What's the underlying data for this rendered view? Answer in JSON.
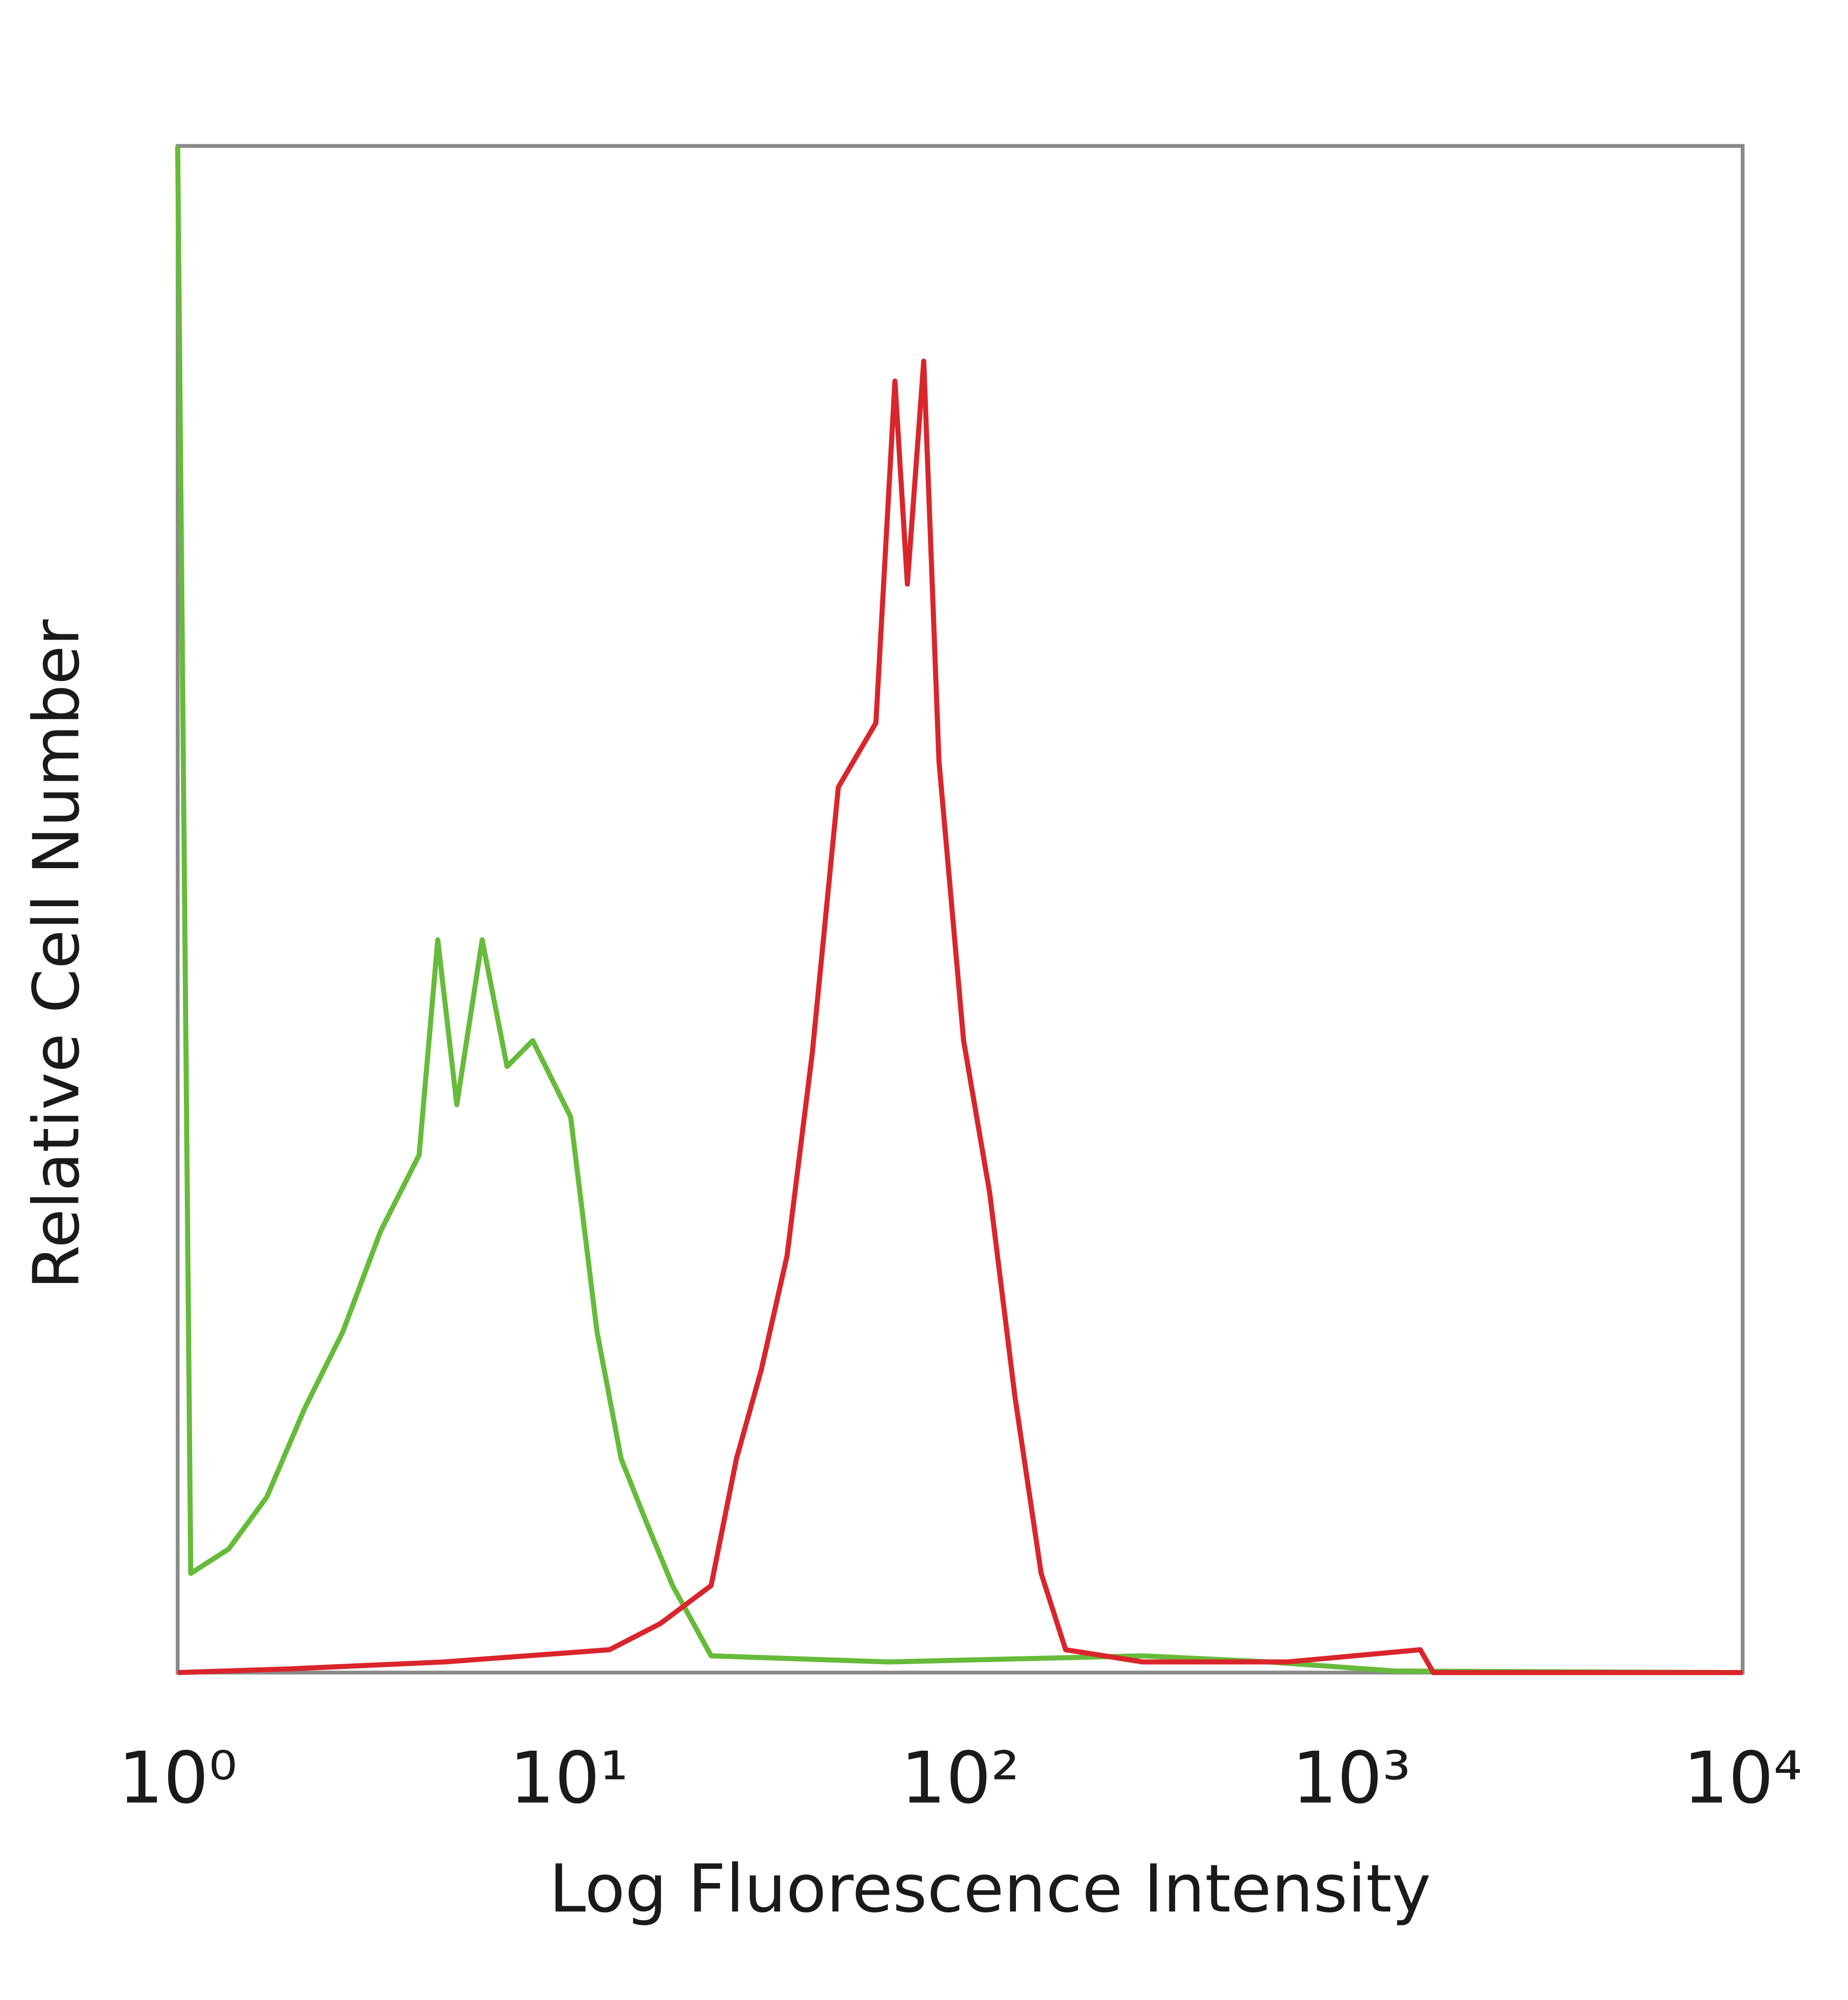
{
  "chart_data": {
    "type": "line",
    "xlabel": "Log Fluorescence Intensity",
    "ylabel": "Relative Cell Number",
    "xscale": "log",
    "xlim": [
      1,
      10000
    ],
    "ylim": [
      0,
      100
    ],
    "xticks": [
      {
        "value": 1,
        "label": "10⁰"
      },
      {
        "value": 10,
        "label": "10¹"
      },
      {
        "value": 100,
        "label": "10²"
      },
      {
        "value": 1000,
        "label": "10³"
      },
      {
        "value": 10000,
        "label": "10⁴"
      }
    ],
    "grid": false,
    "series": [
      {
        "color": "#66bb3a",
        "x": [
          1,
          1.08,
          1.35,
          1.69,
          2.11,
          2.64,
          3.3,
          4.14,
          4.62,
          5.17,
          6.0,
          6.95,
          8.08,
          10.1,
          11.8,
          13.6,
          15.8,
          18.4,
          23.1,
          65.5,
          293,
          614,
          1300,
          10000
        ],
        "values": [
          100,
          6.5,
          8.1,
          11.5,
          17.3,
          22.3,
          28.9,
          33.9,
          48,
          37.2,
          48,
          39.7,
          41.4,
          36.4,
          22.3,
          14,
          9.8,
          5.7,
          1.1,
          0.7,
          1.1,
          0.7,
          0.1,
          0
        ]
      },
      {
        "color": "#d9252b",
        "x": [
          1,
          1.96,
          4.8,
          12.7,
          17.1,
          23.1,
          26.8,
          31.0,
          36.1,
          41.9,
          48.8,
          60.9,
          68.1,
          73.3,
          80.7,
          88.3,
          102,
          119,
          138,
          161,
          186,
          293,
          686,
          1500,
          1620,
          10000
        ],
        "values": [
          0,
          0.25,
          0.7,
          1.5,
          3.2,
          5.7,
          14,
          19.8,
          27.3,
          40.6,
          58,
          62.2,
          84.6,
          71.3,
          85.9,
          59.7,
          41.4,
          31.4,
          18.1,
          6.5,
          1.5,
          0.7,
          0.7,
          1.5,
          0,
          0
        ]
      }
    ]
  }
}
